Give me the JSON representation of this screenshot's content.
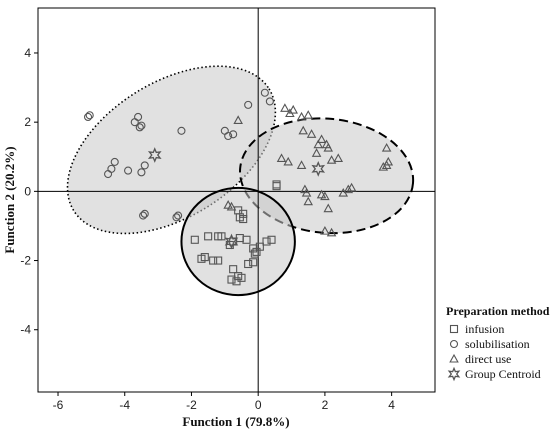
{
  "chart_data": {
    "type": "scatter",
    "xlabel": "Function 1 (79.8%)",
    "ylabel": "Function 2 (20.2%)",
    "xlim": [
      -6.6,
      5.3
    ],
    "ylim": [
      -5.8,
      5.3
    ],
    "x_ticks": [
      -6,
      -4,
      -2,
      0,
      2,
      4
    ],
    "y_ticks": [
      -4,
      -2,
      0,
      2,
      4
    ],
    "grid": false,
    "reference_lines": {
      "x": 0,
      "y": 0
    },
    "legend": {
      "title": "Preparation method",
      "placement": "right",
      "entries": [
        {
          "label": "infusion",
          "marker": "square"
        },
        {
          "label": "solubilisation",
          "marker": "circle"
        },
        {
          "label": "direct use",
          "marker": "triangle"
        },
        {
          "label": "Group Centroid",
          "marker": "star"
        }
      ]
    },
    "series": [
      {
        "name": "infusion",
        "marker": "square",
        "points": [
          [
            -1.9,
            -1.4
          ],
          [
            -1.5,
            -1.3
          ],
          [
            -1.2,
            -1.3
          ],
          [
            -1.1,
            -1.3
          ],
          [
            -1.6,
            -1.9
          ],
          [
            -1.7,
            -1.95
          ],
          [
            -1.35,
            -2.0
          ],
          [
            -1.2,
            -2.0
          ],
          [
            -0.85,
            -1.55
          ],
          [
            -0.75,
            -1.45
          ],
          [
            -0.55,
            -1.35
          ],
          [
            -0.35,
            -1.4
          ],
          [
            -0.15,
            -1.65
          ],
          [
            -0.1,
            -1.8
          ],
          [
            -0.05,
            -1.75
          ],
          [
            0.05,
            -1.6
          ],
          [
            0.25,
            -1.45
          ],
          [
            0.4,
            -1.4
          ],
          [
            -0.15,
            -2.05
          ],
          [
            -0.3,
            -2.1
          ],
          [
            -0.75,
            -2.25
          ],
          [
            -0.6,
            -2.45
          ],
          [
            -0.5,
            -2.5
          ],
          [
            -0.8,
            -2.55
          ],
          [
            -0.65,
            -2.6
          ],
          [
            -0.45,
            -0.65
          ],
          [
            -0.55,
            -0.75
          ],
          [
            -0.45,
            -0.8
          ],
          [
            -0.6,
            -0.55
          ],
          [
            0.55,
            0.15
          ],
          [
            0.55,
            0.2
          ]
        ]
      },
      {
        "name": "solubilisation",
        "marker": "circle",
        "points": [
          [
            -5.05,
            2.2
          ],
          [
            -5.1,
            2.15
          ],
          [
            -3.6,
            2.15
          ],
          [
            -3.7,
            2.0
          ],
          [
            -3.5,
            1.9
          ],
          [
            -3.55,
            1.85
          ],
          [
            -2.3,
            1.75
          ],
          [
            -1.0,
            1.75
          ],
          [
            -0.75,
            1.65
          ],
          [
            -0.9,
            1.6
          ],
          [
            -0.3,
            2.5
          ],
          [
            0.2,
            2.85
          ],
          [
            0.35,
            2.6
          ],
          [
            -4.3,
            0.85
          ],
          [
            -4.4,
            0.65
          ],
          [
            -4.5,
            0.5
          ],
          [
            -3.9,
            0.6
          ],
          [
            -3.4,
            0.75
          ],
          [
            -3.5,
            0.55
          ],
          [
            -3.4,
            -0.65
          ],
          [
            -3.45,
            -0.7
          ],
          [
            -2.4,
            -0.7
          ],
          [
            -2.45,
            -0.75
          ]
        ]
      },
      {
        "name": "direct use",
        "marker": "triangle",
        "points": [
          [
            -0.6,
            2.05
          ],
          [
            0.8,
            2.4
          ],
          [
            0.95,
            2.25
          ],
          [
            1.05,
            2.35
          ],
          [
            1.3,
            2.15
          ],
          [
            1.5,
            2.2
          ],
          [
            1.35,
            1.75
          ],
          [
            1.6,
            1.65
          ],
          [
            1.8,
            1.35
          ],
          [
            1.9,
            1.5
          ],
          [
            2.05,
            1.35
          ],
          [
            2.1,
            1.25
          ],
          [
            1.75,
            1.1
          ],
          [
            2.2,
            0.9
          ],
          [
            2.4,
            0.95
          ],
          [
            0.7,
            0.95
          ],
          [
            0.9,
            0.85
          ],
          [
            1.3,
            0.75
          ],
          [
            2.8,
            0.1
          ],
          [
            2.7,
            0.05
          ],
          [
            2.55,
            -0.05
          ],
          [
            1.4,
            0.05
          ],
          [
            1.45,
            -0.05
          ],
          [
            1.9,
            -0.1
          ],
          [
            2.0,
            -0.15
          ],
          [
            1.5,
            -0.3
          ],
          [
            2.1,
            -0.5
          ],
          [
            2.0,
            -1.15
          ],
          [
            2.2,
            -1.2
          ],
          [
            3.85,
            1.25
          ],
          [
            3.9,
            0.85
          ],
          [
            3.85,
            0.75
          ],
          [
            3.75,
            0.7
          ],
          [
            -0.9,
            -0.4
          ],
          [
            -0.8,
            -0.45
          ]
        ]
      }
    ],
    "centroids": [
      {
        "group": "infusion",
        "x": -0.8,
        "y": -1.45
      },
      {
        "group": "solubilisation",
        "x": -3.1,
        "y": 1.05
      },
      {
        "group": "direct use",
        "x": 1.8,
        "y": 0.65
      }
    ],
    "ellipses": [
      {
        "group": "solubilisation",
        "cx": -2.6,
        "cy": 1.2,
        "rx": 3.45,
        "ry": 1.95,
        "rotation_deg": 32,
        "line": "dotted"
      },
      {
        "group": "direct use",
        "cx": 2.05,
        "cy": 0.45,
        "rx": 2.6,
        "ry": 1.65,
        "rotation_deg": -5,
        "line": "dashed"
      },
      {
        "group": "infusion",
        "cx": -0.6,
        "cy": -1.45,
        "rx": 1.7,
        "ry": 1.55,
        "rotation_deg": 0,
        "line": "solid"
      }
    ],
    "colors": {
      "ellipse_fill": "#c9c9c9",
      "marker": "#555555",
      "axis": "#000000"
    }
  }
}
